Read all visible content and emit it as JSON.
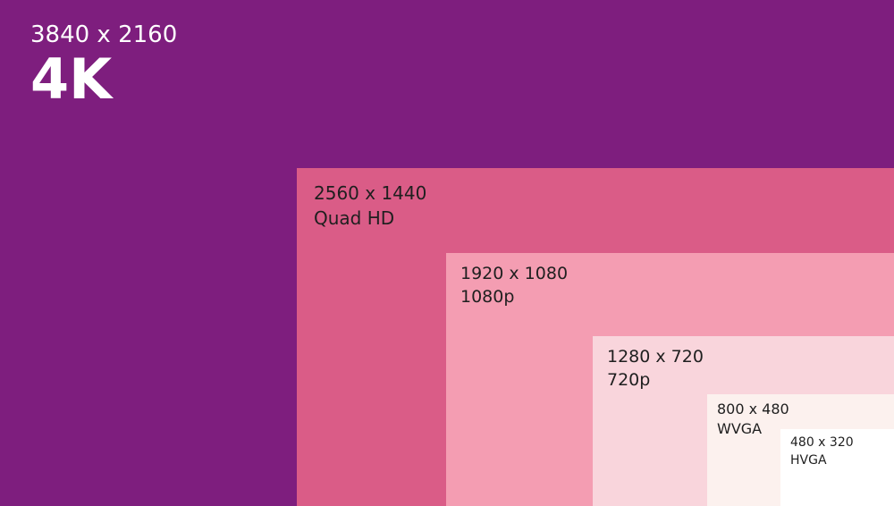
{
  "panels": [
    {
      "resolution": "3840 x 2160",
      "name": "4K"
    },
    {
      "resolution": "2560 x 1440",
      "name": "Quad HD"
    },
    {
      "resolution": "1920 x 1080",
      "name": "1080p"
    },
    {
      "resolution": "1280 x 720",
      "name": "720p"
    },
    {
      "resolution": "800 x 480",
      "name": "WVGA"
    },
    {
      "resolution": "480 x 320",
      "name": "HVGA"
    }
  ]
}
